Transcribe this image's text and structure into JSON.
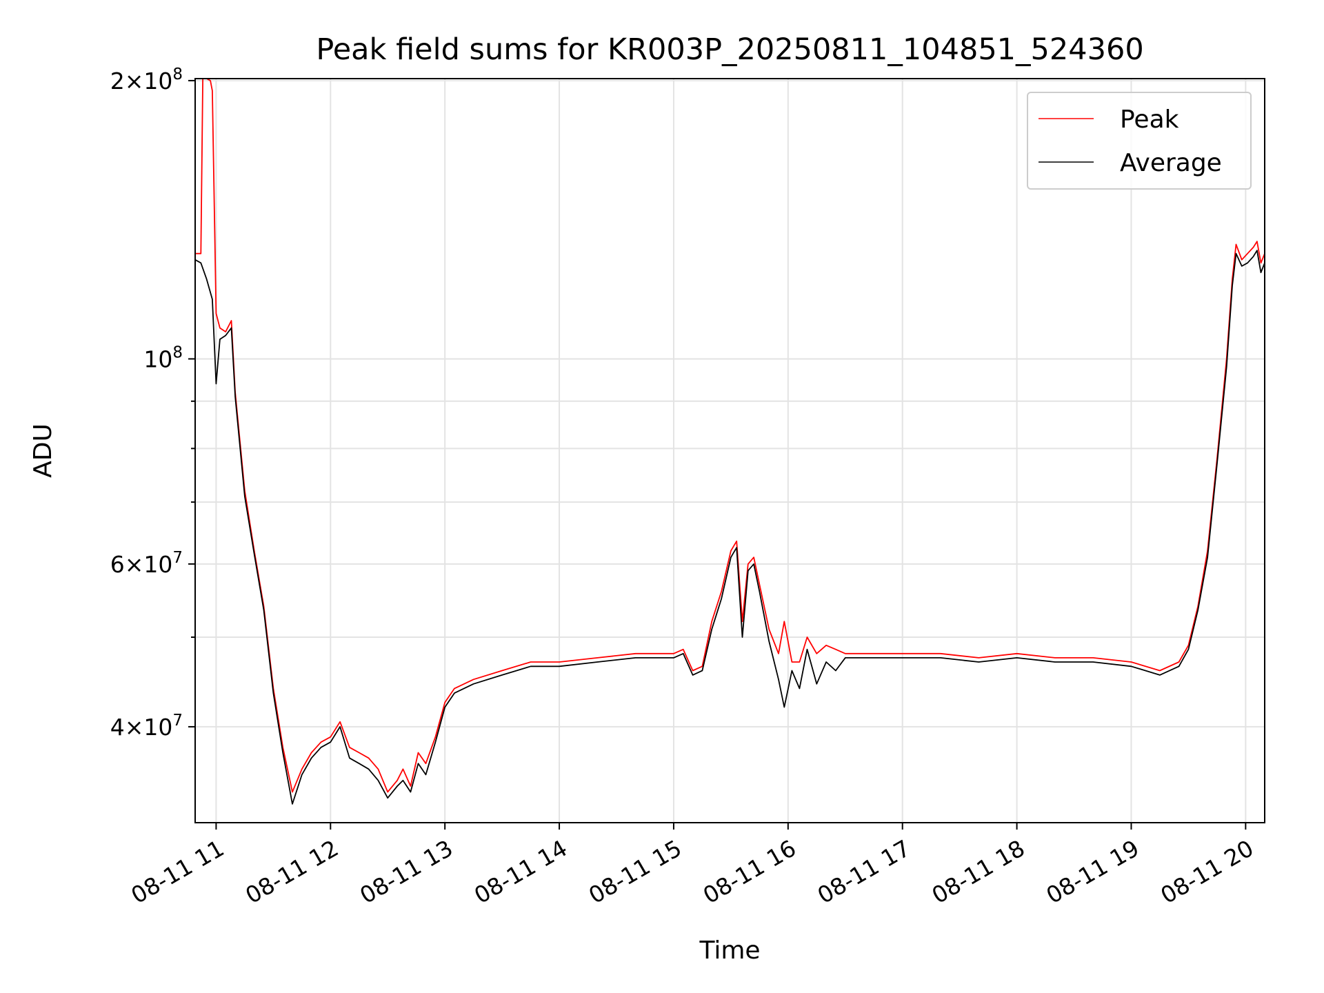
{
  "chart_data": {
    "type": "line",
    "title": "Peak field sums for KR003P_20250811_104851_524360",
    "xlabel": "Time",
    "ylabel": "ADU",
    "y_scale": "log",
    "grid": true,
    "legend_position": "top-right",
    "xlim": [
      "2025-08-11 10:49",
      "2025-08-11 20:10"
    ],
    "ylim": [
      31500000,
      201000000
    ],
    "x_tick_labels": [
      "08-11 11",
      "08-11 12",
      "08-11 13",
      "08-11 14",
      "08-11 15",
      "08-11 16",
      "08-11 17",
      "08-11 18",
      "08-11 19",
      "08-11 20"
    ],
    "x_tick_values": [
      "2025-08-11 11:00",
      "2025-08-11 12:00",
      "2025-08-11 13:00",
      "2025-08-11 14:00",
      "2025-08-11 15:00",
      "2025-08-11 16:00",
      "2025-08-11 17:00",
      "2025-08-11 18:00",
      "2025-08-11 19:00",
      "2025-08-11 20:00"
    ],
    "y_ticks": [
      {
        "value": 40000000,
        "base": "4",
        "exp": "7"
      },
      {
        "value": 60000000,
        "base": "6",
        "exp": "7"
      },
      {
        "value": 100000000,
        "base": "",
        "exp": "8"
      },
      {
        "value": 200000000,
        "base": "2",
        "exp": "8"
      }
    ],
    "y_minor_ticks": [
      50000000,
      70000000,
      80000000,
      90000000,
      300000000
    ],
    "series": [
      {
        "name": "Peak",
        "color": "#ff0000",
        "x": [
          "2025-08-11 10:49",
          "2025-08-11 10:52",
          "2025-08-11 10:53",
          "2025-08-11 10:55",
          "2025-08-11 10:57",
          "2025-08-11 10:58",
          "2025-08-11 11:00",
          "2025-08-11 11:02",
          "2025-08-11 11:05",
          "2025-08-11 11:08",
          "2025-08-11 11:10",
          "2025-08-11 11:15",
          "2025-08-11 11:20",
          "2025-08-11 11:25",
          "2025-08-11 11:30",
          "2025-08-11 11:35",
          "2025-08-11 11:40",
          "2025-08-11 11:45",
          "2025-08-11 11:50",
          "2025-08-11 11:55",
          "2025-08-11 12:00",
          "2025-08-11 12:05",
          "2025-08-11 12:10",
          "2025-08-11 12:15",
          "2025-08-11 12:20",
          "2025-08-11 12:25",
          "2025-08-11 12:30",
          "2025-08-11 12:35",
          "2025-08-11 12:38",
          "2025-08-11 12:42",
          "2025-08-11 12:46",
          "2025-08-11 12:50",
          "2025-08-11 12:55",
          "2025-08-11 13:00",
          "2025-08-11 13:05",
          "2025-08-11 13:15",
          "2025-08-11 13:30",
          "2025-08-11 13:45",
          "2025-08-11 14:00",
          "2025-08-11 14:20",
          "2025-08-11 14:40",
          "2025-08-11 15:00",
          "2025-08-11 15:05",
          "2025-08-11 15:10",
          "2025-08-11 15:15",
          "2025-08-11 15:20",
          "2025-08-11 15:25",
          "2025-08-11 15:30",
          "2025-08-11 15:33",
          "2025-08-11 15:36",
          "2025-08-11 15:39",
          "2025-08-11 15:42",
          "2025-08-11 15:45",
          "2025-08-11 15:50",
          "2025-08-11 15:55",
          "2025-08-11 15:58",
          "2025-08-11 16:02",
          "2025-08-11 16:06",
          "2025-08-11 16:10",
          "2025-08-11 16:15",
          "2025-08-11 16:20",
          "2025-08-11 16:25",
          "2025-08-11 16:30",
          "2025-08-11 16:40",
          "2025-08-11 17:00",
          "2025-08-11 17:20",
          "2025-08-11 17:40",
          "2025-08-11 18:00",
          "2025-08-11 18:20",
          "2025-08-11 18:40",
          "2025-08-11 19:00",
          "2025-08-11 19:15",
          "2025-08-11 19:25",
          "2025-08-11 19:30",
          "2025-08-11 19:35",
          "2025-08-11 19:40",
          "2025-08-11 19:45",
          "2025-08-11 19:50",
          "2025-08-11 19:53",
          "2025-08-11 19:55",
          "2025-08-11 19:58",
          "2025-08-11 20:01",
          "2025-08-11 20:04",
          "2025-08-11 20:06",
          "2025-08-11 20:08",
          "2025-08-11 20:10"
        ],
        "values": [
          130000000,
          130000000,
          205000000,
          205000000,
          200000000,
          195000000,
          112000000,
          108000000,
          107000000,
          110000000,
          92000000,
          72000000,
          62000000,
          54000000,
          44000000,
          38000000,
          34000000,
          36000000,
          37500000,
          38500000,
          39000000,
          40500000,
          38000000,
          37500000,
          37000000,
          36000000,
          34000000,
          35000000,
          36000000,
          34500000,
          37500000,
          36500000,
          39000000,
          42500000,
          44000000,
          45000000,
          46000000,
          47000000,
          47000000,
          47500000,
          48000000,
          48000000,
          48500000,
          46000000,
          46500000,
          52000000,
          56000000,
          62000000,
          63500000,
          52000000,
          60000000,
          61000000,
          57000000,
          51000000,
          48000000,
          52000000,
          47000000,
          47000000,
          50000000,
          48000000,
          49000000,
          48500000,
          48000000,
          48000000,
          48000000,
          48000000,
          47500000,
          48000000,
          47500000,
          47500000,
          47000000,
          46000000,
          47000000,
          49000000,
          54000000,
          62000000,
          78000000,
          100000000,
          122000000,
          133000000,
          128000000,
          130000000,
          132000000,
          134000000,
          127000000,
          130000000
        ]
      },
      {
        "name": "Average",
        "color": "#000000",
        "x": [
          "2025-08-11 10:49",
          "2025-08-11 10:52",
          "2025-08-11 10:55",
          "2025-08-11 10:58",
          "2025-08-11 11:00",
          "2025-08-11 11:02",
          "2025-08-11 11:05",
          "2025-08-11 11:08",
          "2025-08-11 11:10",
          "2025-08-11 11:15",
          "2025-08-11 11:20",
          "2025-08-11 11:25",
          "2025-08-11 11:30",
          "2025-08-11 11:35",
          "2025-08-11 11:40",
          "2025-08-11 11:45",
          "2025-08-11 11:50",
          "2025-08-11 11:55",
          "2025-08-11 12:00",
          "2025-08-11 12:05",
          "2025-08-11 12:10",
          "2025-08-11 12:15",
          "2025-08-11 12:20",
          "2025-08-11 12:25",
          "2025-08-11 12:30",
          "2025-08-11 12:35",
          "2025-08-11 12:38",
          "2025-08-11 12:42",
          "2025-08-11 12:46",
          "2025-08-11 12:50",
          "2025-08-11 12:55",
          "2025-08-11 13:00",
          "2025-08-11 13:05",
          "2025-08-11 13:15",
          "2025-08-11 13:30",
          "2025-08-11 13:45",
          "2025-08-11 14:00",
          "2025-08-11 14:20",
          "2025-08-11 14:40",
          "2025-08-11 15:00",
          "2025-08-11 15:05",
          "2025-08-11 15:10",
          "2025-08-11 15:15",
          "2025-08-11 15:20",
          "2025-08-11 15:25",
          "2025-08-11 15:30",
          "2025-08-11 15:33",
          "2025-08-11 15:36",
          "2025-08-11 15:39",
          "2025-08-11 15:42",
          "2025-08-11 15:45",
          "2025-08-11 15:50",
          "2025-08-11 15:55",
          "2025-08-11 15:58",
          "2025-08-11 16:02",
          "2025-08-11 16:06",
          "2025-08-11 16:10",
          "2025-08-11 16:15",
          "2025-08-11 16:20",
          "2025-08-11 16:25",
          "2025-08-11 16:30",
          "2025-08-11 16:40",
          "2025-08-11 17:00",
          "2025-08-11 17:20",
          "2025-08-11 17:40",
          "2025-08-11 18:00",
          "2025-08-11 18:20",
          "2025-08-11 18:40",
          "2025-08-11 19:00",
          "2025-08-11 19:15",
          "2025-08-11 19:25",
          "2025-08-11 19:30",
          "2025-08-11 19:35",
          "2025-08-11 19:40",
          "2025-08-11 19:45",
          "2025-08-11 19:50",
          "2025-08-11 19:53",
          "2025-08-11 19:55",
          "2025-08-11 19:58",
          "2025-08-11 20:01",
          "2025-08-11 20:04",
          "2025-08-11 20:06",
          "2025-08-11 20:08",
          "2025-08-11 20:10"
        ],
        "values": [
          128000000,
          127000000,
          122000000,
          116000000,
          94000000,
          105000000,
          106000000,
          108000000,
          91000000,
          71000000,
          61500000,
          53500000,
          43500000,
          37500000,
          33000000,
          35500000,
          37000000,
          38000000,
          38500000,
          40000000,
          37000000,
          36500000,
          36000000,
          35000000,
          33500000,
          34500000,
          35000000,
          34000000,
          36500000,
          35500000,
          38500000,
          42000000,
          43500000,
          44500000,
          45500000,
          46500000,
          46500000,
          47000000,
          47500000,
          47500000,
          48000000,
          45500000,
          46000000,
          51000000,
          55000000,
          61000000,
          62500000,
          50000000,
          59000000,
          60000000,
          56000000,
          49500000,
          45000000,
          42000000,
          46000000,
          44000000,
          48500000,
          44500000,
          47000000,
          46000000,
          47500000,
          47500000,
          47500000,
          47500000,
          47000000,
          47500000,
          47000000,
          47000000,
          46500000,
          45500000,
          46500000,
          48500000,
          53500000,
          61000000,
          77000000,
          98000000,
          120000000,
          130000000,
          126000000,
          127000000,
          129000000,
          131000000,
          124000000,
          127000000
        ]
      }
    ]
  }
}
